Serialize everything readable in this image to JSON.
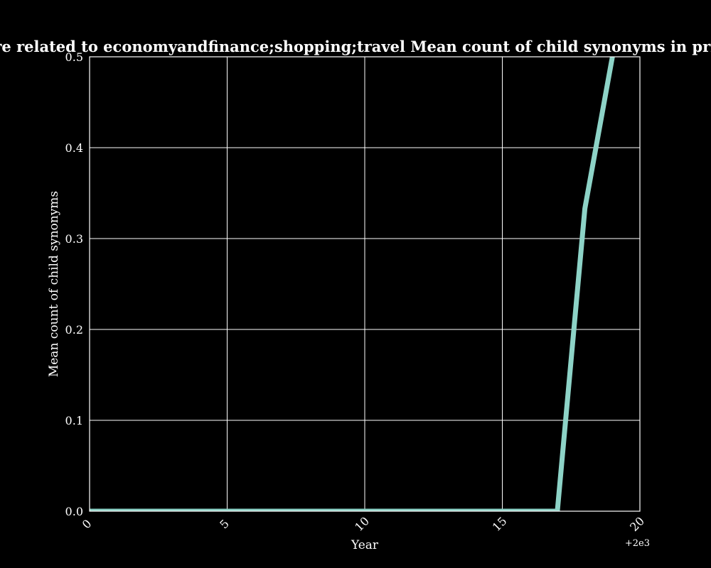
{
  "chart_data": {
    "type": "line",
    "title": "Categories are related to economyandfinance;shopping;travel Mean count of child synonyms in privacy policies",
    "xlabel": "Year",
    "ylabel": "Mean count of child synonyms",
    "x_offset_label": "+2e3",
    "xlim": [
      0,
      20
    ],
    "ylim": [
      0,
      0.5
    ],
    "xticks": [
      0,
      5,
      10,
      15,
      20
    ],
    "xtick_labels": [
      "0",
      "5",
      "10",
      "15",
      "20"
    ],
    "yticks": [
      0,
      0.1,
      0.2,
      0.3,
      0.4,
      0.5
    ],
    "ytick_labels": [
      "0.0",
      "0.1",
      "0.2",
      "0.3",
      "0.4",
      "0.5"
    ],
    "grid": true,
    "legend": "none",
    "series": [
      {
        "color": "#8dd3c7",
        "x": [
          0,
          1,
          2,
          3,
          4,
          5,
          6,
          7,
          8,
          9,
          10,
          11,
          12,
          13,
          14,
          15,
          16,
          17,
          18,
          19
        ],
        "y": [
          0,
          0,
          0,
          0,
          0,
          0,
          0,
          0,
          0,
          0,
          0,
          0,
          0,
          0,
          0,
          0,
          0,
          0,
          0.333,
          0.5
        ]
      }
    ],
    "colors": {
      "background": "#000000",
      "axes": "#ffffff",
      "grid": "#ffffff",
      "text": "#ffffff"
    }
  }
}
